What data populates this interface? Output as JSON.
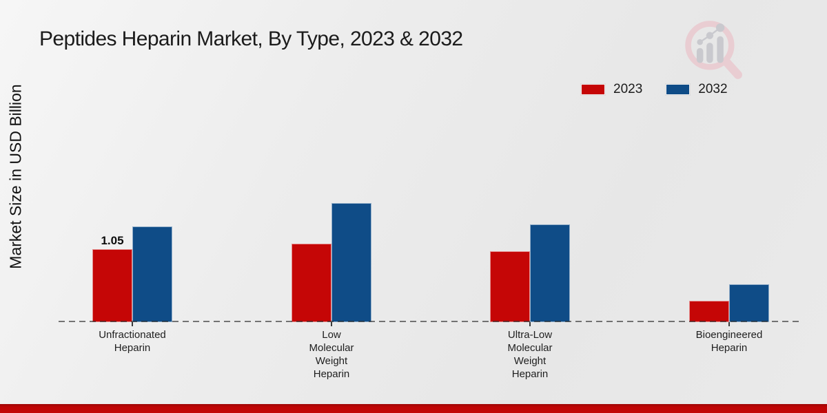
{
  "page": {
    "title": "Peptides Heparin Market, By Type, 2023 & 2032",
    "y_axis_label": "Market Size in USD Billion"
  },
  "legend": {
    "items": [
      {
        "label": "2023",
        "color": "#c50606"
      },
      {
        "label": "2032",
        "color": "#0f4c87"
      }
    ]
  },
  "chart_data": {
    "type": "bar",
    "title": "Peptides Heparin Market, By Type, 2023 & 2032",
    "ylabel": "Market Size in USD Billion",
    "xlabel": "",
    "categories": [
      "Unfractionated Heparin",
      "Low Molecular Weight Heparin",
      "Ultra-Low Molecular Weight Heparin",
      "Bioengineered Heparin"
    ],
    "category_label_lines": [
      [
        "Unfractionated",
        "Heparin"
      ],
      [
        "Low",
        "Molecular",
        "Weight",
        "Heparin"
      ],
      [
        "Ultra-Low",
        "Molecular",
        "Weight",
        "Heparin"
      ],
      [
        "Bioengineered",
        "Heparin"
      ]
    ],
    "series": [
      {
        "name": "2023",
        "color": "#c50606",
        "values": [
          1.05,
          1.13,
          1.02,
          0.31
        ]
      },
      {
        "name": "2032",
        "color": "#0f4c87",
        "values": [
          1.38,
          1.71,
          1.41,
          0.54
        ]
      }
    ],
    "value_labels": [
      {
        "series": "2023",
        "category_index": 0,
        "text": "1.05"
      }
    ],
    "ylim": [
      0,
      1.9
    ],
    "grid": false,
    "baseline_style": "dashed",
    "legend_position": "top-right"
  },
  "icons": {
    "logo": "magnifier-bar-chart-logo"
  },
  "footer": {
    "band_color": "#c20606"
  }
}
